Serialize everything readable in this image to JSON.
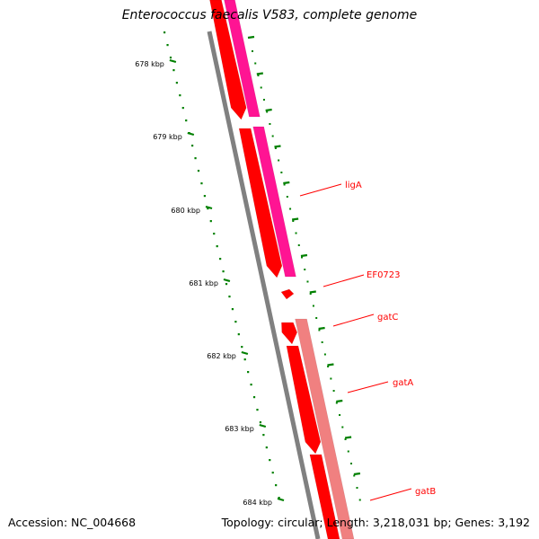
{
  "title": "Enterococcus faecalis V583, complete genome",
  "accession": "Accession: NC_004668",
  "genome_info": "Topology: circular; Length: 3,218,031 bp; Genes: 3,192",
  "colors": {
    "backbone": "#808080",
    "cds_red": "#ff0000",
    "cds_magenta": "#ff1493",
    "cds_salmon": "#f08080",
    "tick_green": "#008000",
    "label_red": "#ff0000"
  },
  "ticks": [
    {
      "label": "678 kbp"
    },
    {
      "label": "679 kbp"
    },
    {
      "label": "680 kbp"
    },
    {
      "label": "681 kbp"
    },
    {
      "label": "682 kbp"
    },
    {
      "label": "683 kbp"
    },
    {
      "label": "684 kbp"
    }
  ],
  "genes": [
    {
      "name": "ligA"
    },
    {
      "name": "EF0723"
    },
    {
      "name": "gatC"
    },
    {
      "name": "gatA"
    },
    {
      "name": "gatB"
    }
  ]
}
